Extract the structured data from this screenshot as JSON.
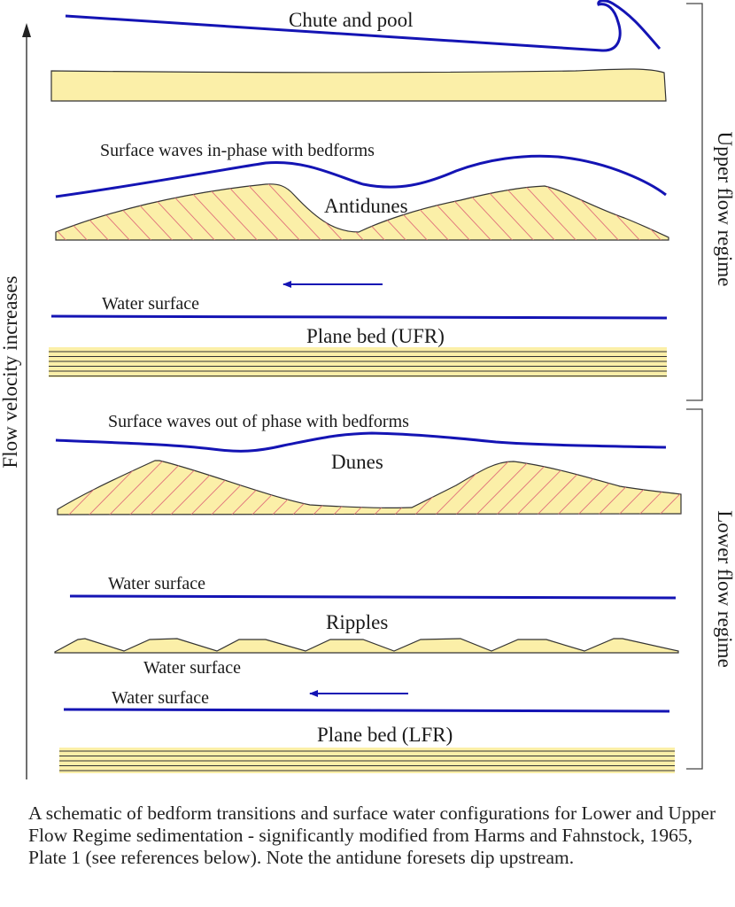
{
  "axis": {
    "label": "Flow velocity increases"
  },
  "regimes": {
    "upper": "Upper flow regime",
    "lower": "Lower flow regime"
  },
  "panels": {
    "chute_and_pool": {
      "title": "Chute and pool"
    },
    "antidunes": {
      "caption": "Surface waves in-phase with bedforms",
      "title": "Antidunes"
    },
    "plane_bed_ufr": {
      "water": "Water surface",
      "title": "Plane bed (UFR)"
    },
    "dunes": {
      "caption": "Surface waves out of phase with bedforms",
      "title": "Dunes"
    },
    "ripples": {
      "water_above": "Water surface",
      "title": "Ripples",
      "water_below": "Water surface"
    },
    "plane_bed_lfr": {
      "water": "Water surface",
      "title": "Plane bed (LFR)"
    }
  },
  "caption": "A schematic of bedform transitions and surface water configurations for Lower and Upper Flow Regime sedimentation - significantly modified from Harms and Fahnstock, 1965, Plate 1 (see references below). Note the antidune foresets dip upstream.",
  "colors": {
    "water": "#1414b4",
    "sediment": "#fbefa8",
    "foreset": "#e0707a",
    "outline": "#333333"
  }
}
